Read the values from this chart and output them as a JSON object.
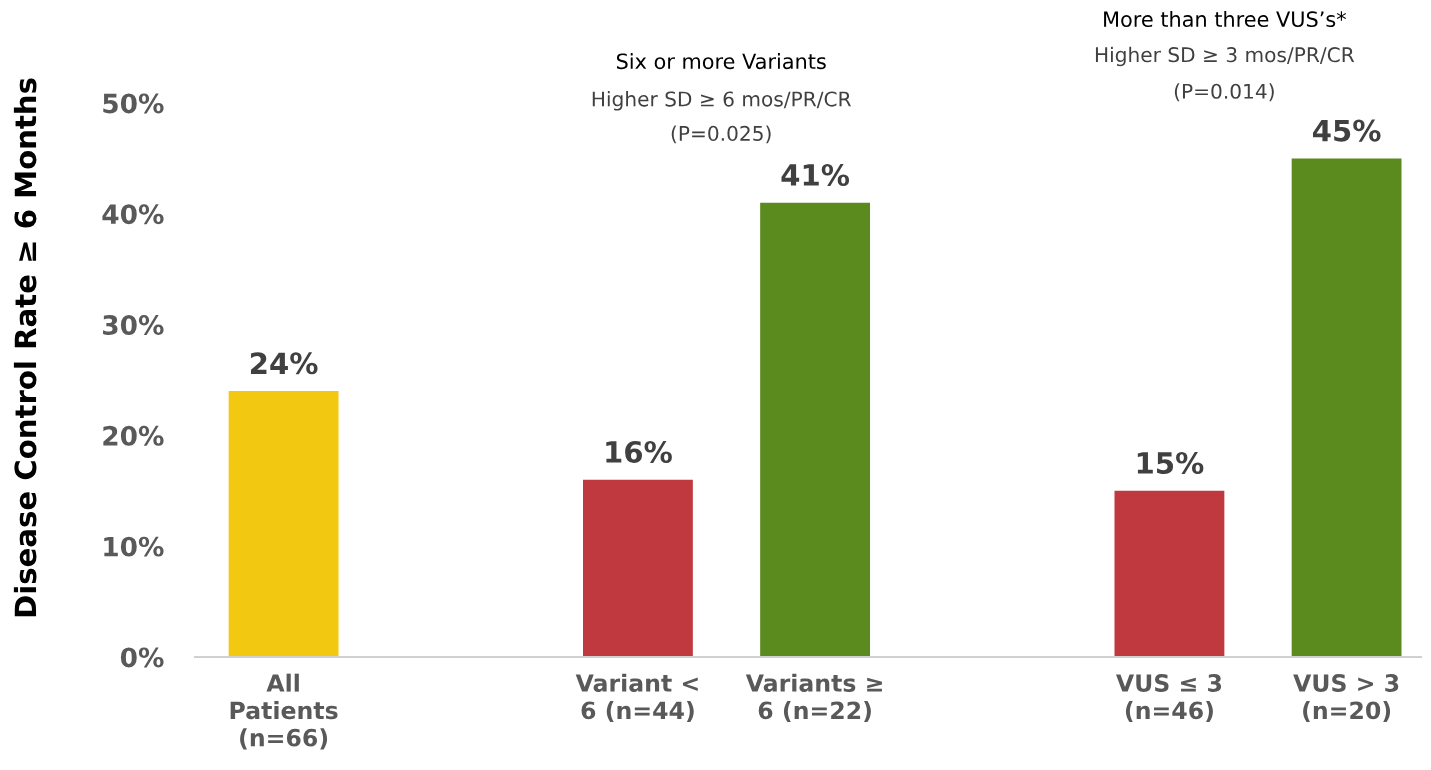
{
  "chart_data": {
    "type": "bar",
    "ylabel": "Disease Control Rate ≥ 6 Months",
    "categories": [
      "All\nPatients\n(n=66)",
      null,
      "Variant <\n6 (n=44)",
      "Variants ≥\n6 (n=22)",
      null,
      "VUS ≤ 3\n(n=46)",
      "VUS > 3\n(n=20)"
    ],
    "values": [
      24,
      null,
      16,
      41,
      null,
      15,
      45
    ],
    "colors": [
      "#f2c811",
      null,
      "#c0393e",
      "#5b8a1e",
      null,
      "#c0393e",
      "#5b8a1e"
    ],
    "value_labels": [
      "24%",
      null,
      "16%",
      "41%",
      null,
      "15%",
      "45%"
    ],
    "ylim": [
      0,
      50
    ],
    "yticks": [
      {
        "value": 0,
        "label": "0%"
      },
      {
        "value": 10,
        "label": "10%"
      },
      {
        "value": 20,
        "label": "20%"
      },
      {
        "value": 30,
        "label": "30%"
      },
      {
        "value": 40,
        "label": "40%"
      },
      {
        "value": 50,
        "label": "50%"
      }
    ],
    "grid": false,
    "legend": false,
    "annotations": [
      "Six or more Variants",
      "Higher SD ≥ 6 mos/PR/CR",
      "(P=0.025)",
      "More than three VUS’s*",
      "Higher SD ≥ 3 mos/PR/CR",
      "(P=0.014)"
    ]
  }
}
